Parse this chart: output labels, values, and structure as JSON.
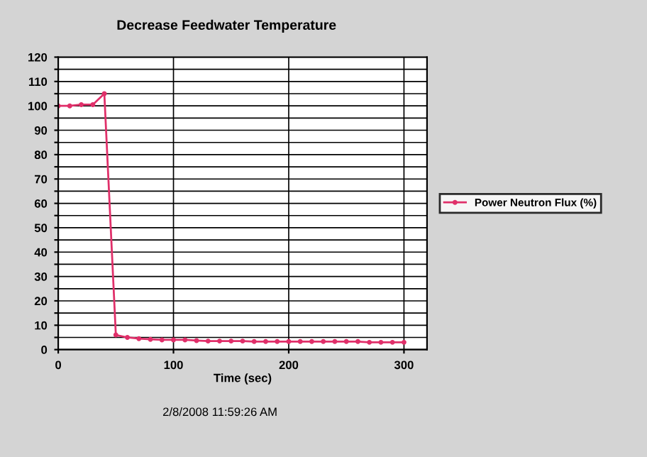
{
  "chart_data": {
    "type": "line",
    "title": "Decrease Feedwater Temperature",
    "xlabel": "Time (sec)",
    "annotations": [
      "2/8/2008 11:59:26 AM"
    ],
    "x": [
      0,
      10,
      20,
      30,
      40,
      50,
      60,
      70,
      80,
      90,
      100,
      110,
      120,
      130,
      140,
      150,
      160,
      170,
      180,
      190,
      200,
      210,
      220,
      230,
      240,
      250,
      260,
      270,
      280,
      290,
      300
    ],
    "series": [
      {
        "name": "Power Neutron Flux (%)",
        "color": "#e0306a",
        "values": [
          100,
          100,
          100.5,
          100.5,
          105,
          6,
          5,
          4.5,
          4.2,
          4,
          4,
          4,
          3.7,
          3.5,
          3.5,
          3.5,
          3.5,
          3.3,
          3.3,
          3.3,
          3.3,
          3.3,
          3.3,
          3.3,
          3.3,
          3.3,
          3.3,
          3,
          3,
          3,
          3
        ]
      }
    ],
    "xlim": [
      0,
      320
    ],
    "xticks": [
      0,
      100,
      200,
      300
    ],
    "ylim": [
      0,
      120
    ],
    "yticks": [
      0,
      {
        "value": 5,
        "label": null
      },
      10,
      {
        "value": 15,
        "label": null
      },
      20,
      {
        "value": 25,
        "label": null
      },
      30,
      {
        "value": 35,
        "label": null
      },
      40,
      {
        "value": 45,
        "label": null
      },
      50,
      {
        "value": 55,
        "label": null
      },
      60,
      {
        "value": 65,
        "label": null
      },
      70,
      {
        "value": 75,
        "label": null
      },
      80,
      {
        "value": 85,
        "label": null
      },
      90,
      {
        "value": 95,
        "label": null
      },
      100,
      {
        "value": 105,
        "label": null
      },
      110,
      {
        "value": 115,
        "label": null
      },
      120
    ],
    "grid": true,
    "legend": "right",
    "marker": "circle",
    "line_style": "solid"
  }
}
